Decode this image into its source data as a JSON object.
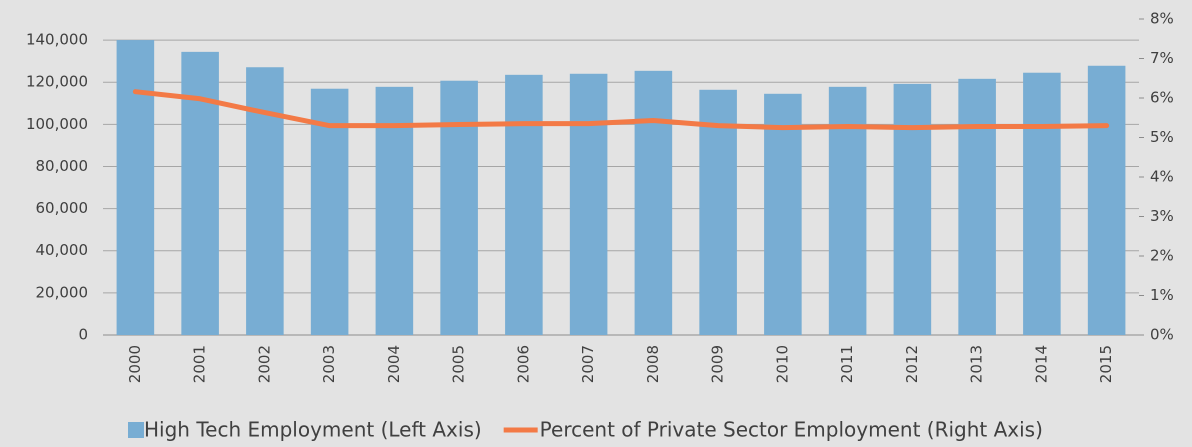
{
  "chart_data": {
    "type": "bar-line",
    "categories": [
      "2000",
      "2001",
      "2002",
      "2003",
      "2004",
      "2005",
      "2006",
      "2007",
      "2008",
      "2009",
      "2010",
      "2011",
      "2012",
      "2013",
      "2014",
      "2015"
    ],
    "series": [
      {
        "name": "High Tech Employment (Left Axis)",
        "type": "bar",
        "color": "#78add3",
        "values": [
          140000,
          134400,
          127100,
          116900,
          117800,
          120700,
          123500,
          124000,
          125400,
          116400,
          114500,
          117800,
          119200,
          121600,
          124500,
          127800
        ]
      },
      {
        "name": "Percent of Private Sector Employment (Right Axis)",
        "type": "line",
        "axis": "y2",
        "color": "#f37a46",
        "values": [
          6.16,
          5.98,
          5.63,
          5.3,
          5.3,
          5.33,
          5.35,
          5.35,
          5.43,
          5.3,
          5.25,
          5.28,
          5.25,
          5.28,
          5.28,
          5.3
        ]
      }
    ],
    "ylim": [
      0,
      150000
    ],
    "yticks": [
      0,
      {
        "value": 20000,
        "label": "20,000"
      },
      {
        "value": 40000,
        "label": "40,000"
      },
      {
        "value": 60000,
        "label": "60,000"
      },
      {
        "value": 80000,
        "label": "80,000"
      },
      {
        "value": 100000,
        "label": "100,000"
      },
      {
        "value": 120000,
        "label": "120,000"
      },
      {
        "value": 140000,
        "label": "140,000"
      }
    ],
    "y2lim": [
      0,
      8
    ],
    "y2ticks": [
      {
        "value": 0,
        "label": "0%"
      },
      {
        "value": 1,
        "label": "1%"
      },
      {
        "value": 2,
        "label": "2%"
      },
      {
        "value": 3,
        "label": "3%"
      },
      {
        "value": 4,
        "label": "4%"
      },
      {
        "value": 5,
        "label": "5%"
      },
      {
        "value": 6,
        "label": "6%"
      },
      {
        "value": 7,
        "label": "7%"
      },
      {
        "value": 8,
        "label": "8%"
      }
    ],
    "grid": true,
    "legend": "bottom"
  }
}
